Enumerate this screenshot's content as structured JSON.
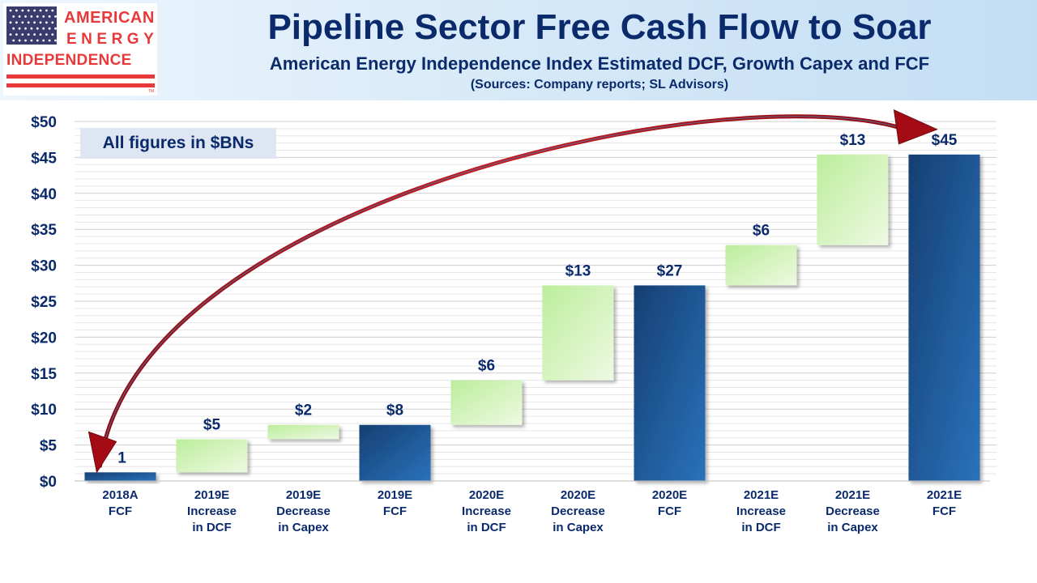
{
  "logo": {
    "line1": "AMERICAN",
    "line2": "ENERGY",
    "line3": "INDEPENDENCE",
    "trademark": "TM"
  },
  "header": {
    "title": "Pipeline Sector Free Cash Flow to Soar",
    "subtitle": "American Energy Independence Index Estimated DCF, Growth Capex and FCF",
    "sources": "(Sources: Company reports; SL Advisors)"
  },
  "annotation": "All figures in $BNs",
  "colors": {
    "title_text": "#0b2a6b",
    "total_bar_dark": "#163f72",
    "total_bar_light": "#2a72bc",
    "delta_bar_light": "#eef9e3",
    "delta_bar_dark": "#bcee9b",
    "arrow_red": "#a50b14",
    "logo_red": "#e8393a",
    "logo_blue": "#3c3b6e"
  },
  "chart_data": {
    "type": "bar",
    "subtype": "waterfall",
    "categories": [
      [
        "2018A",
        "FCF"
      ],
      [
        "2019E",
        "Increase",
        "in DCF"
      ],
      [
        "2019E",
        "Decrease",
        "in Capex"
      ],
      [
        "2019E",
        "FCF"
      ],
      [
        "2020E",
        "Increase",
        "in DCF"
      ],
      [
        "2020E",
        "Decrease",
        "in Capex"
      ],
      [
        "2020E",
        "FCF"
      ],
      [
        "2021E",
        "Increase",
        "in DCF"
      ],
      [
        "2021E",
        "Decrease",
        "in Capex"
      ],
      [
        "2021E",
        "FCF"
      ]
    ],
    "bars": [
      {
        "kind": "total",
        "base": 0,
        "top": 1.2,
        "label": "1"
      },
      {
        "kind": "delta",
        "base": 1.2,
        "top": 5.8,
        "label": "$5"
      },
      {
        "kind": "delta",
        "base": 5.8,
        "top": 7.8,
        "label": "$2"
      },
      {
        "kind": "total",
        "base": 0,
        "top": 7.8,
        "label": "$8"
      },
      {
        "kind": "delta",
        "base": 7.8,
        "top": 14.0,
        "label": "$6"
      },
      {
        "kind": "delta",
        "base": 14.0,
        "top": 27.2,
        "label": "$13"
      },
      {
        "kind": "total",
        "base": 0,
        "top": 27.2,
        "label": "$27"
      },
      {
        "kind": "delta",
        "base": 27.2,
        "top": 32.8,
        "label": "$6"
      },
      {
        "kind": "delta",
        "base": 32.8,
        "top": 45.4,
        "label": "$13"
      },
      {
        "kind": "total",
        "base": 0,
        "top": 45.4,
        "label": "$45"
      }
    ],
    "ylim": [
      0,
      50
    ],
    "y_ticks": [
      0,
      5,
      10,
      15,
      20,
      25,
      30,
      35,
      40,
      45,
      50
    ],
    "y_tick_labels": [
      "$0",
      "$5",
      "$10",
      "$15",
      "$20",
      "$25",
      "$30",
      "$35",
      "$40",
      "$45",
      "$50"
    ],
    "minor_grid_step": 1,
    "grid": true,
    "arrow": {
      "from_category": 0,
      "to_category": 9
    },
    "title": "",
    "xlabel": "",
    "ylabel": ""
  }
}
